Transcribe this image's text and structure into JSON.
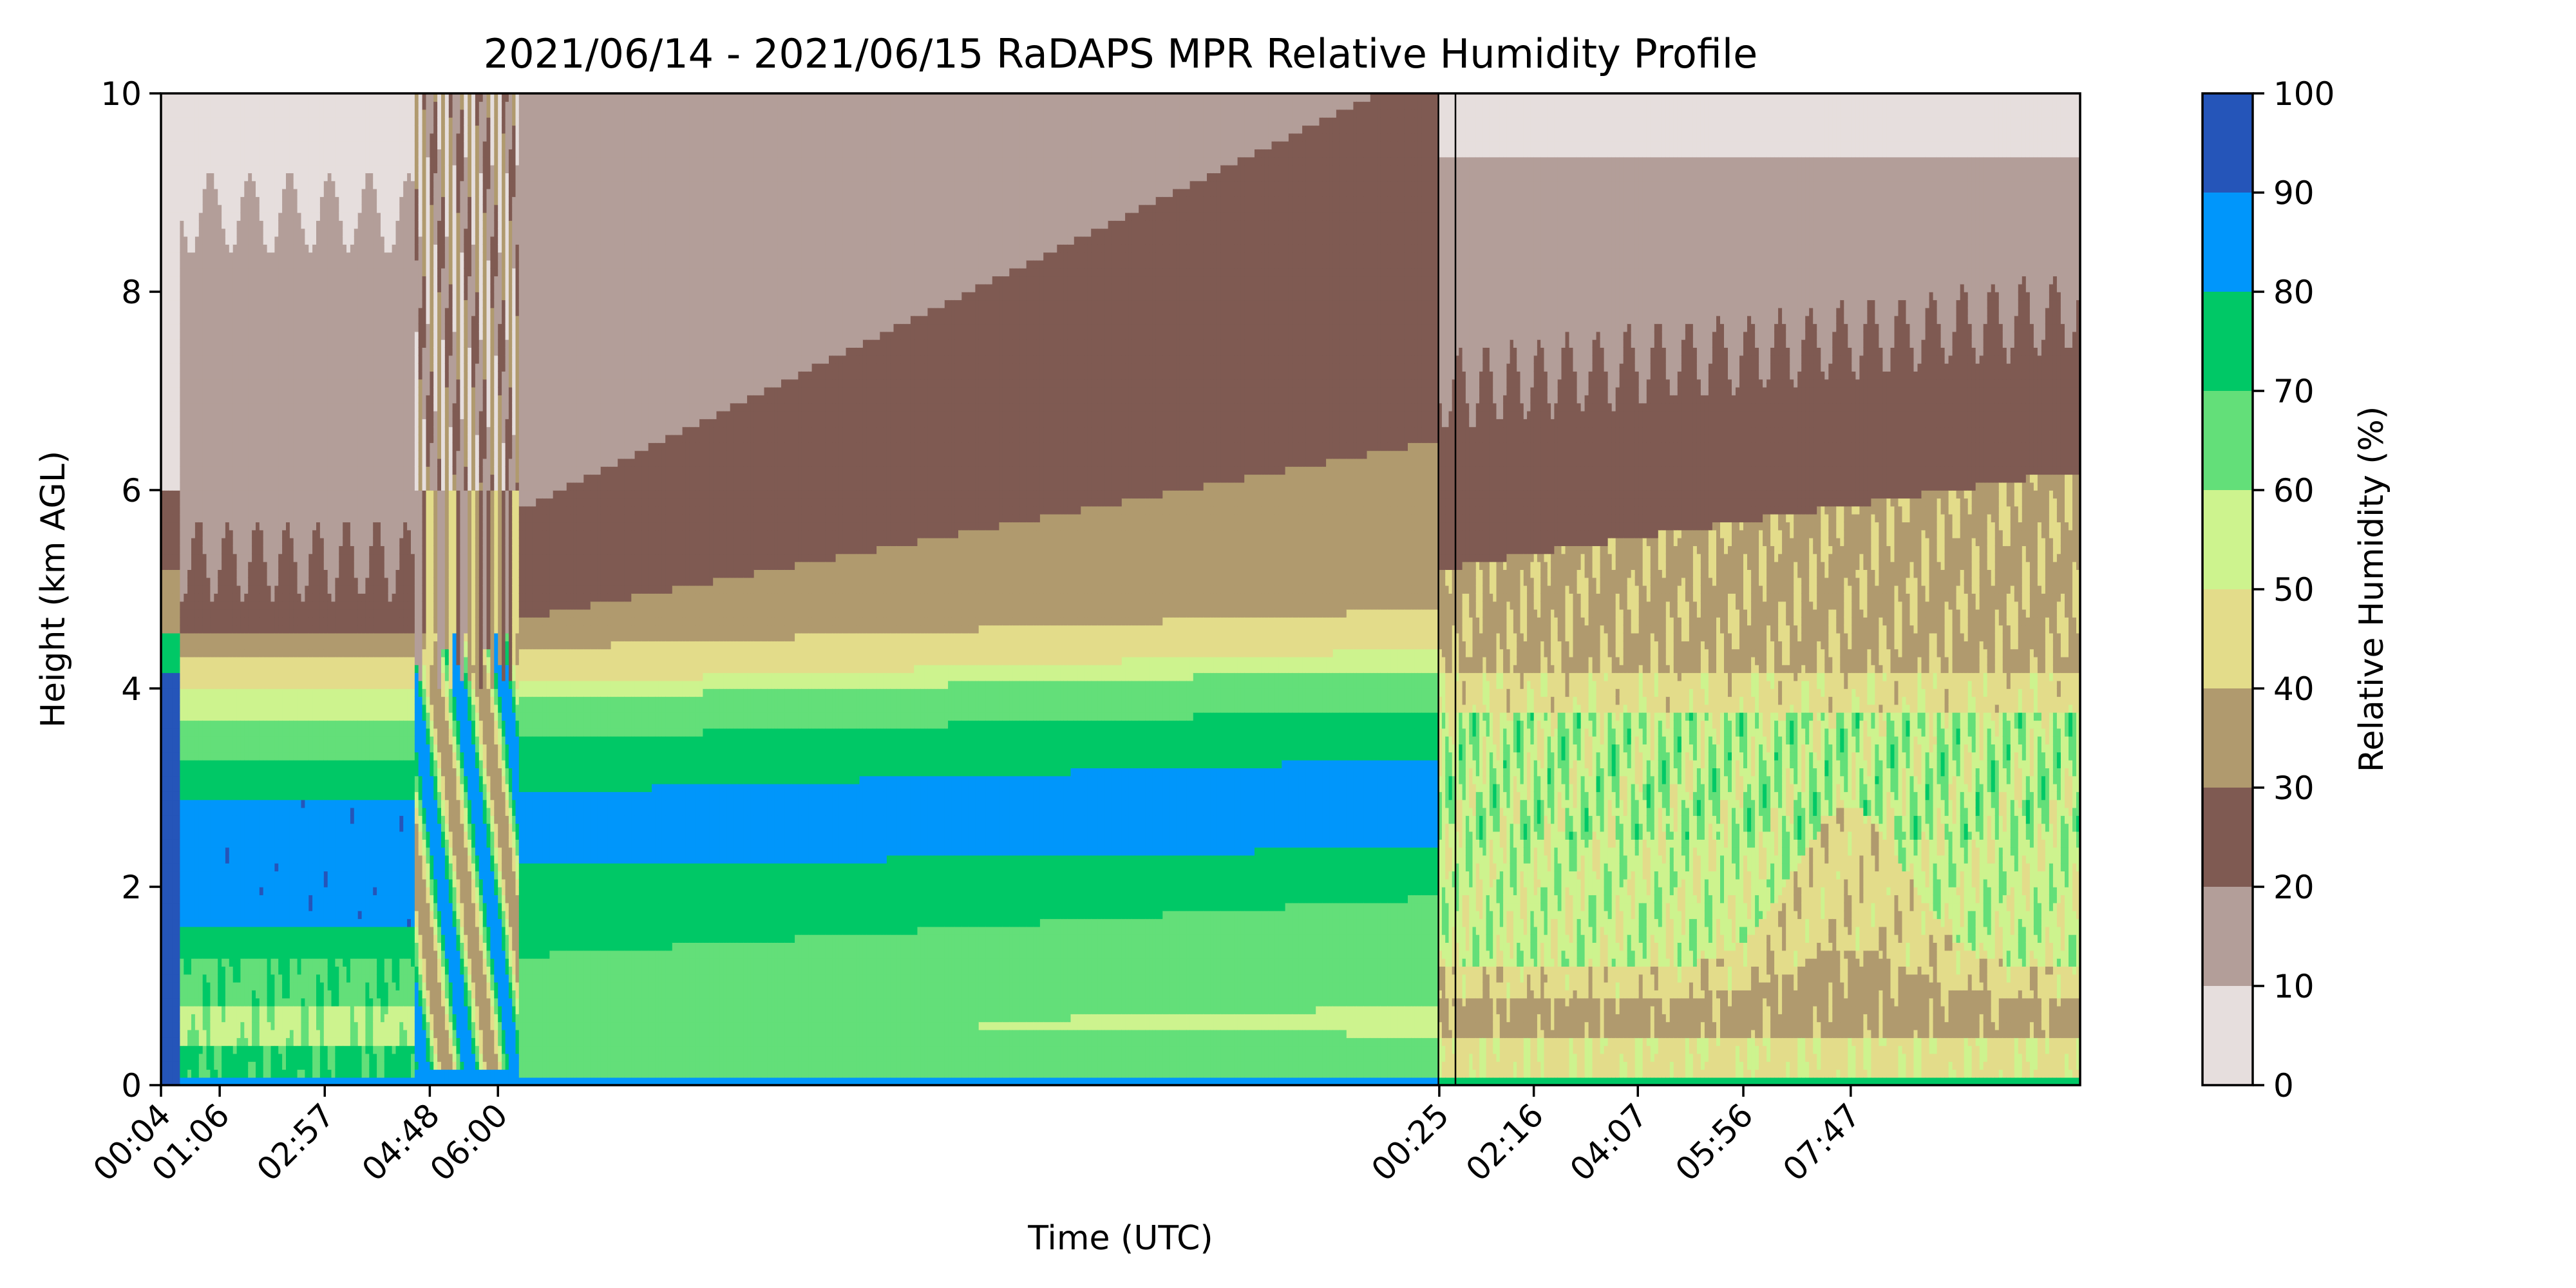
{
  "chart_data": {
    "type": "heatmap",
    "subtype": "filled-contour",
    "title": "2021/06/14 - 2021/06/15 RaDAPS MPR Relative Humidity Profile",
    "xlabel": "Time (UTC)",
    "ylabel": "Height (km AGL)",
    "ylim": [
      0,
      10
    ],
    "y_ticks": [
      0,
      2,
      4,
      6,
      8,
      10
    ],
    "x_ticks": [
      {
        "label": "00:04",
        "date": "2021-06-14T00:04"
      },
      {
        "label": "01:06",
        "date": "2021-06-14T01:06"
      },
      {
        "label": "02:57",
        "date": "2021-06-14T02:57"
      },
      {
        "label": "04:48",
        "date": "2021-06-14T04:48"
      },
      {
        "label": "06:00",
        "date": "2021-06-14T06:00"
      },
      {
        "label": "00:25",
        "date": "2021-06-15T00:25"
      },
      {
        "label": "02:16",
        "date": "2021-06-15T02:16"
      },
      {
        "label": "04:07",
        "date": "2021-06-15T04:07"
      },
      {
        "label": "05:56",
        "date": "2021-06-15T05:56"
      },
      {
        "label": "07:47",
        "date": "2021-06-15T07:47"
      }
    ],
    "colorbar": {
      "label": "Relative Humidity (%)",
      "ticks": [
        0,
        10,
        20,
        30,
        40,
        50,
        60,
        70,
        80,
        90,
        100
      ],
      "levels": [
        {
          "range": [
            0,
            10
          ],
          "color": "#e6dedd"
        },
        {
          "range": [
            10,
            20
          ],
          "color": "#b39e99"
        },
        {
          "range": [
            20,
            30
          ],
          "color": "#7f5a52"
        },
        {
          "range": [
            30,
            40
          ],
          "color": "#b09a6e"
        },
        {
          "range": [
            40,
            50
          ],
          "color": "#e3dc8a"
        },
        {
          "range": [
            50,
            60
          ],
          "color": "#cdf38e"
        },
        {
          "range": [
            60,
            70
          ],
          "color": "#63df79"
        },
        {
          "range": [
            70,
            80
          ],
          "color": "#00c866"
        },
        {
          "range": [
            80,
            90
          ],
          "color": "#0096fb"
        },
        {
          "range": [
            90,
            100
          ],
          "color": "#2555b9"
        }
      ]
    }
  }
}
